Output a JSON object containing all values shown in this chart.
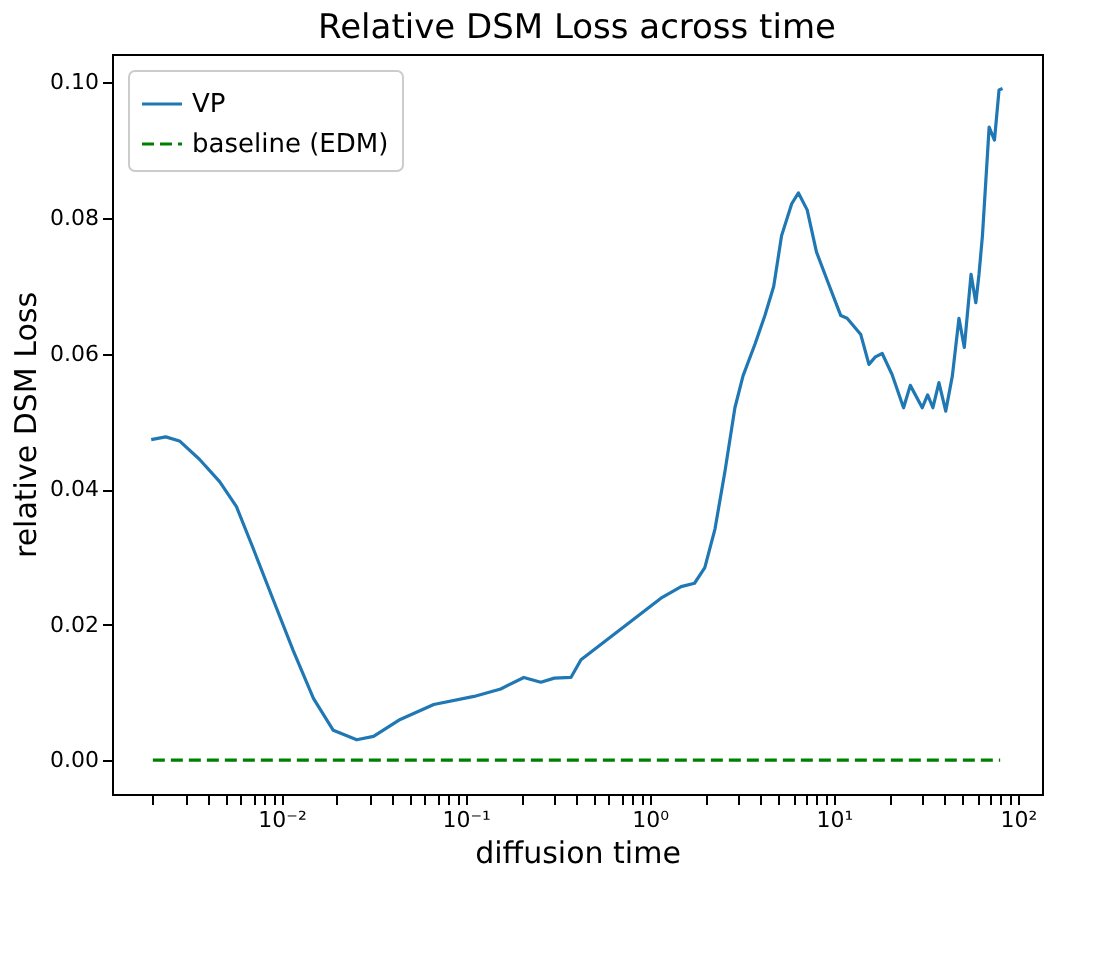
{
  "chart_data": {
    "type": "line",
    "title": "Relative DSM Loss across time",
    "xlabel": "diffusion time",
    "ylabel": "relative DSM Loss",
    "log": "x",
    "grid": false,
    "legend": "top left",
    "xlim": [
      0.0012,
      135
    ],
    "ylim": [
      -0.005,
      0.1042
    ],
    "xticks": [
      {
        "value": 0.002,
        "label": null
      },
      {
        "value": 0.003,
        "label": null
      },
      {
        "value": 0.004,
        "label": null
      },
      {
        "value": 0.005,
        "label": null
      },
      {
        "value": 0.006,
        "label": null
      },
      {
        "value": 0.007,
        "label": null
      },
      {
        "value": 0.008,
        "label": null
      },
      {
        "value": 0.009,
        "label": null
      },
      {
        "value": 0.01,
        "label": "10⁻²"
      },
      {
        "value": 0.02,
        "label": null
      },
      {
        "value": 0.03,
        "label": null
      },
      {
        "value": 0.04,
        "label": null
      },
      {
        "value": 0.05,
        "label": null
      },
      {
        "value": 0.06,
        "label": null
      },
      {
        "value": 0.07,
        "label": null
      },
      {
        "value": 0.08,
        "label": null
      },
      {
        "value": 0.09,
        "label": null
      },
      {
        "value": 0.1,
        "label": "10⁻¹"
      },
      {
        "value": 0.2,
        "label": null
      },
      {
        "value": 0.3,
        "label": null
      },
      {
        "value": 0.4,
        "label": null
      },
      {
        "value": 0.5,
        "label": null
      },
      {
        "value": 0.6,
        "label": null
      },
      {
        "value": 0.7,
        "label": null
      },
      {
        "value": 0.8,
        "label": null
      },
      {
        "value": 0.9,
        "label": null
      },
      {
        "value": 1,
        "label": "10⁰"
      },
      {
        "value": 2,
        "label": null
      },
      {
        "value": 3,
        "label": null
      },
      {
        "value": 4,
        "label": null
      },
      {
        "value": 5,
        "label": null
      },
      {
        "value": 6,
        "label": null
      },
      {
        "value": 7,
        "label": null
      },
      {
        "value": 8,
        "label": null
      },
      {
        "value": 9,
        "label": null
      },
      {
        "value": 10,
        "label": "10¹"
      },
      {
        "value": 20,
        "label": null
      },
      {
        "value": 30,
        "label": null
      },
      {
        "value": 40,
        "label": null
      },
      {
        "value": 50,
        "label": null
      },
      {
        "value": 60,
        "label": null
      },
      {
        "value": 70,
        "label": null
      },
      {
        "value": 80,
        "label": null
      },
      {
        "value": 90,
        "label": null
      },
      {
        "value": 100,
        "label": "10²"
      }
    ],
    "yticks": [
      {
        "value": 0,
        "label": "0.00"
      },
      {
        "value": 0.02,
        "label": "0.02"
      },
      {
        "value": 0.04,
        "label": "0.04"
      },
      {
        "value": 0.06,
        "label": "0.06"
      },
      {
        "value": 0.08,
        "label": "0.08"
      },
      {
        "value": 0.1,
        "label": "0.10"
      }
    ],
    "series": [
      {
        "name": "VP",
        "color": "#1f77b4",
        "line_style": "solid",
        "x": [
          0.00196,
          0.00235,
          0.00279,
          0.00358,
          0.00461,
          0.00569,
          0.007,
          0.009,
          0.01156,
          0.0149,
          0.0191,
          0.0256,
          0.0316,
          0.0441,
          0.0671,
          0.111,
          0.155,
          0.207,
          0.256,
          0.303,
          0.373,
          0.423,
          1.15,
          1.48,
          1.75,
          1.99,
          2.26,
          2.56,
          2.9,
          3.21,
          3.73,
          4.22,
          4.71,
          5.2,
          5.9,
          6.42,
          7.16,
          8.04,
          9.35,
          10.9,
          11.8,
          14.0,
          15.5,
          16.8,
          18.3,
          20.7,
          23.9,
          26.0,
          30.2,
          32.3,
          34.5,
          37.2,
          40.5,
          44.0,
          47.8,
          51.1,
          55.6,
          59.0,
          61.4,
          64.1,
          69.7,
          74.5,
          78.9,
          82.4
        ],
        "values": [
          0.0473,
          0.0477,
          0.0471,
          0.0444,
          0.0411,
          0.0374,
          0.0313,
          0.0237,
          0.0162,
          0.0091,
          0.0044,
          0.003,
          0.0035,
          0.006,
          0.0082,
          0.0094,
          0.0105,
          0.0122,
          0.0115,
          0.0121,
          0.0122,
          0.0148,
          0.0239,
          0.0256,
          0.0261,
          0.0284,
          0.0341,
          0.0426,
          0.052,
          0.0567,
          0.0614,
          0.0656,
          0.0699,
          0.0774,
          0.0821,
          0.0837,
          0.0812,
          0.075,
          0.0703,
          0.0656,
          0.0652,
          0.0628,
          0.0584,
          0.0595,
          0.06,
          0.0569,
          0.052,
          0.0553,
          0.052,
          0.0539,
          0.052,
          0.0557,
          0.0515,
          0.0567,
          0.0652,
          0.0609,
          0.0717,
          0.0675,
          0.0717,
          0.0774,
          0.0934,
          0.0915,
          0.0989,
          0.0991
        ]
      },
      {
        "name": "baseline (EDM)",
        "color": "#008000",
        "line_style": "dashed",
        "x": [
          0.002,
          80
        ],
        "values": [
          0,
          0
        ]
      }
    ]
  }
}
